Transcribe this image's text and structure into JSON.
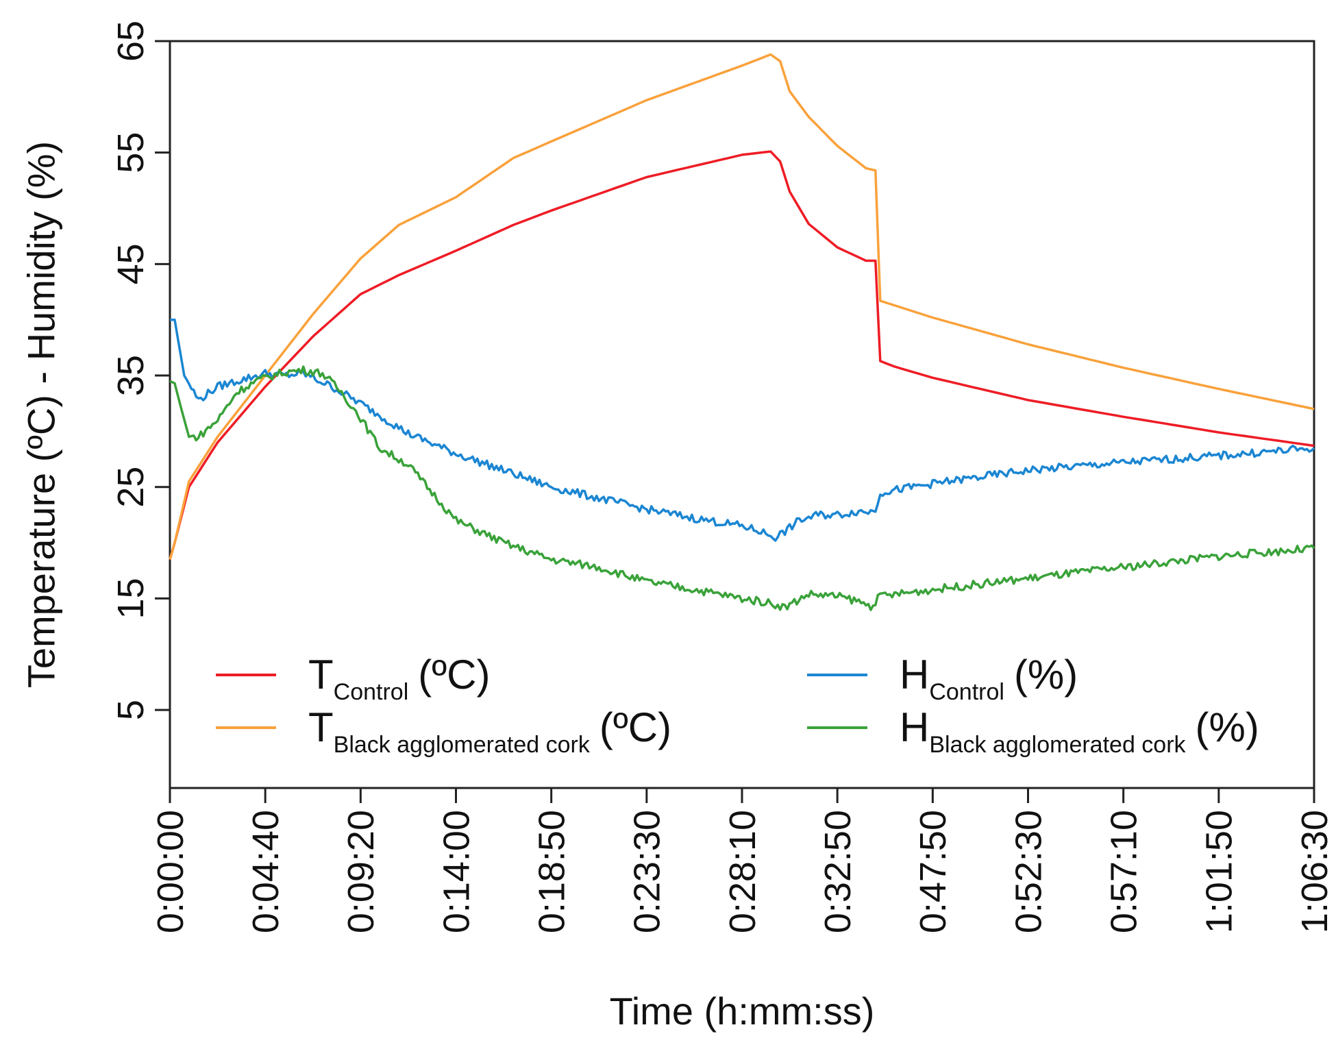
{
  "chart_data": {
    "type": "line",
    "title": "",
    "xlabel": "Time (h:mm:ss)",
    "ylabel": "Temperature (ºC) - Humidity (%)",
    "ylim": [
      -2,
      65
    ],
    "y_ticks": [
      5,
      15,
      25,
      35,
      45,
      55,
      65
    ],
    "x_tick_labels": [
      "0:00:00",
      "0:04:40",
      "0:09:20",
      "0:14:00",
      "0:18:50",
      "0:23:30",
      "0:28:10",
      "0:32:50",
      "0:47:50",
      "0:52:30",
      "0:57:10",
      "1:01:50",
      "1:06:30"
    ],
    "x_index_range": [
      0,
      12
    ],
    "legend_position": "bottom",
    "grid": false,
    "series": [
      {
        "key": "t_control",
        "name_main": "T",
        "name_sub": "Control",
        "unit": "(ºC)",
        "color": "#ee1c25",
        "x": [
          0,
          0.05,
          0.2,
          0.5,
          1.0,
          1.5,
          2.0,
          2.4,
          3.0,
          3.6,
          4.0,
          5.0,
          6.0,
          6.3,
          6.4,
          6.5,
          6.7,
          7.0,
          7.3,
          7.4,
          7.45,
          7.6,
          8.0,
          9.0,
          10.0,
          11.0,
          12.0
        ],
        "values": [
          18.5,
          20,
          25,
          29,
          34,
          38.5,
          42.3,
          44,
          46.2,
          48.5,
          49.8,
          52.8,
          54.8,
          55.1,
          54.2,
          51.5,
          48.6,
          46.5,
          45.3,
          45.3,
          36.3,
          35.8,
          34.8,
          32.8,
          31.3,
          29.9,
          28.7
        ]
      },
      {
        "key": "t_black",
        "name_main": "T",
        "name_sub": "Black agglomerated cork",
        "unit": "(ºC)",
        "color": "#f9a13b",
        "x": [
          0,
          0.05,
          0.2,
          0.5,
          1.0,
          1.5,
          2.0,
          2.4,
          3.0,
          3.6,
          4.0,
          5.0,
          6.0,
          6.3,
          6.4,
          6.5,
          6.7,
          7.0,
          7.3,
          7.4,
          7.45,
          8.0,
          9.0,
          10.0,
          11.0,
          12.0
        ],
        "values": [
          18.5,
          20,
          25.5,
          29.5,
          35,
          40.5,
          45.5,
          48.5,
          51,
          54.5,
          56,
          59.7,
          62.8,
          63.8,
          63.2,
          60.5,
          58.2,
          55.6,
          53.6,
          53.4,
          41.7,
          40.2,
          37.8,
          35.7,
          33.8,
          32.0
        ]
      },
      {
        "key": "h_control",
        "name_main": "H",
        "name_sub": "Control",
        "unit": "(%)",
        "color": "#1b86d2",
        "x": [
          0,
          0.05,
          0.15,
          0.3,
          0.5,
          0.7,
          1.0,
          1.2,
          1.4,
          1.7,
          2.0,
          2.5,
          3.0,
          3.5,
          4.0,
          4.5,
          5.0,
          5.5,
          6.0,
          6.2,
          6.35,
          6.45,
          6.6,
          6.8,
          7.0,
          7.2,
          7.35,
          7.4,
          7.45,
          8.0,
          9.0,
          10.0,
          11.0,
          12.0
        ],
        "values": [
          40,
          40,
          35,
          32.8,
          34,
          34.5,
          35.2,
          35,
          35.2,
          34,
          32.5,
          29.8,
          28,
          26.5,
          25,
          24,
          23,
          22.2,
          21.5,
          21,
          20.5,
          21,
          22,
          22.5,
          22.5,
          22.8,
          22.8,
          23,
          24.5,
          25.3,
          26.5,
          27.2,
          27.8,
          28.5
        ]
      },
      {
        "key": "h_black",
        "name_main": "H",
        "name_sub": "Black agglomerated cork",
        "unit": "(%)",
        "color": "#3aa23a",
        "x": [
          0,
          0.05,
          0.12,
          0.2,
          0.3,
          0.5,
          0.7,
          0.9,
          1.0,
          1.2,
          1.4,
          1.6,
          1.8,
          2.0,
          2.2,
          2.5,
          2.8,
          3.0,
          3.5,
          4.0,
          4.5,
          5.0,
          5.5,
          6.0,
          6.3,
          6.45,
          6.7,
          7.0,
          7.2,
          7.35,
          7.45,
          8.0,
          9.0,
          10.0,
          11.0,
          12.0
        ],
        "values": [
          34.5,
          34.3,
          32,
          29.5,
          29.5,
          31,
          33.5,
          34.5,
          34.8,
          35.3,
          35.5,
          35.2,
          33.5,
          31.2,
          28.5,
          27,
          24,
          22,
          20,
          18.5,
          17.8,
          16.5,
          15.8,
          15,
          14.6,
          14.2,
          15.4,
          15.2,
          14.8,
          14.3,
          15.2,
          15.8,
          16.8,
          17.8,
          18.8,
          19.5
        ]
      }
    ]
  }
}
